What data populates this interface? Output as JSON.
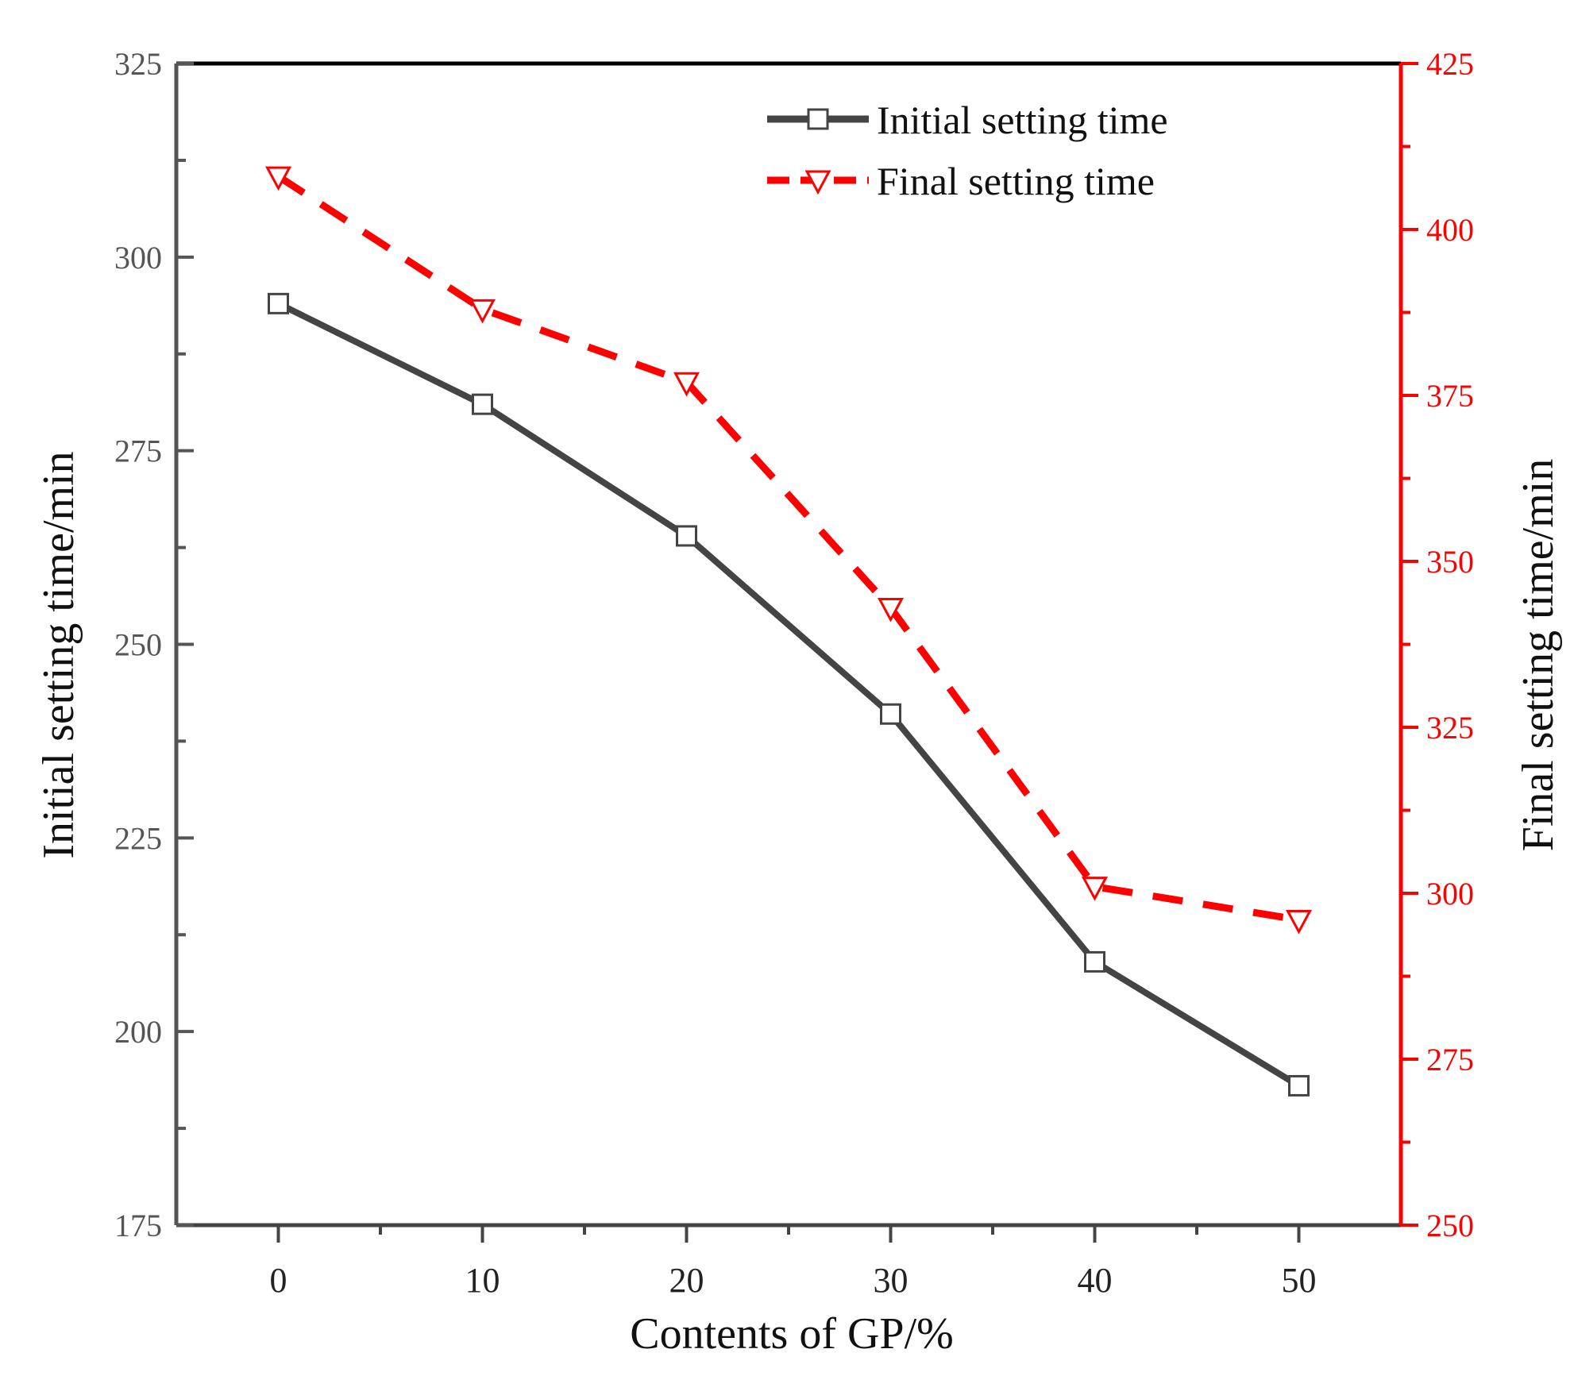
{
  "chart_data": {
    "type": "line",
    "title": "",
    "xlabel": "Contents of GP/%",
    "ylabel": "Initial setting time/min",
    "ylabel_right": "Final setting time/min",
    "x": [
      0,
      10,
      20,
      30,
      40,
      50
    ],
    "xlim": [
      -5,
      55
    ],
    "x_ticks": [
      0,
      10,
      20,
      30,
      40,
      50
    ],
    "ylim": [
      175,
      325
    ],
    "y_ticks": [
      175,
      200,
      225,
      250,
      275,
      300,
      325
    ],
    "ylim_right": [
      250,
      425
    ],
    "y_ticks_right": [
      250,
      275,
      300,
      325,
      350,
      375,
      400,
      425
    ],
    "grid": false,
    "legend_position": "top-right",
    "series": [
      {
        "name": "Initial setting time",
        "axis": "left",
        "values": [
          294,
          281,
          264,
          241,
          209,
          193
        ],
        "color": "#444444",
        "marker": "square",
        "line_style": "solid"
      },
      {
        "name": "Final setting time",
        "axis": "right",
        "values": [
          408,
          388,
          377,
          343,
          301,
          296
        ],
        "color": "#ff0000",
        "marker": "triangle-down",
        "line_style": "dashed"
      }
    ]
  }
}
